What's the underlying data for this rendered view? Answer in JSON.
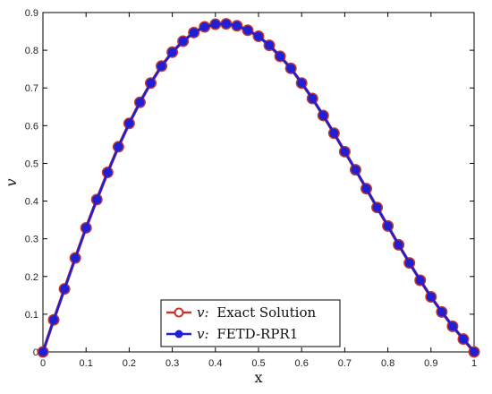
{
  "chart_data": {
    "type": "line",
    "xlabel": "x",
    "ylabel": "v",
    "xlim": [
      0,
      1
    ],
    "ylim": [
      0,
      0.9
    ],
    "xticks": [
      "0",
      "0.1",
      "0.2",
      "0.3",
      "0.4",
      "0.5",
      "0.6",
      "0.7",
      "0.8",
      "0.9",
      "1"
    ],
    "yticks": [
      "0",
      "0.1",
      "0.2",
      "0.3",
      "0.4",
      "0.5",
      "0.6",
      "0.7",
      "0.8",
      "0.9"
    ],
    "grid": false,
    "legend_position": "bottom-center",
    "x": [
      0,
      0.025,
      0.05,
      0.075,
      0.1,
      0.125,
      0.15,
      0.175,
      0.2,
      0.225,
      0.25,
      0.275,
      0.3,
      0.325,
      0.35,
      0.375,
      0.4,
      0.425,
      0.45,
      0.475,
      0.5,
      0.525,
      0.55,
      0.575,
      0.6,
      0.625,
      0.65,
      0.675,
      0.7,
      0.725,
      0.75,
      0.775,
      0.8,
      0.825,
      0.85,
      0.875,
      0.9,
      0.925,
      0.95,
      0.975,
      1
    ],
    "series": [
      {
        "name": "Exact Solution",
        "name_var": "v:",
        "color": "#c0392b",
        "values": [
          0,
          0.085,
          0.167,
          0.249,
          0.329,
          0.404,
          0.476,
          0.544,
          0.606,
          0.662,
          0.713,
          0.758,
          0.795,
          0.824,
          0.847,
          0.862,
          0.869,
          0.87,
          0.865,
          0.853,
          0.837,
          0.813,
          0.784,
          0.752,
          0.713,
          0.672,
          0.627,
          0.58,
          0.531,
          0.483,
          0.433,
          0.383,
          0.334,
          0.284,
          0.236,
          0.19,
          0.146,
          0.106,
          0.068,
          0.034,
          0
        ]
      },
      {
        "name": "FETD-RPR1",
        "name_var": "v:",
        "color": "#1f1fd6",
        "values": [
          0,
          0.085,
          0.167,
          0.249,
          0.329,
          0.404,
          0.476,
          0.544,
          0.606,
          0.662,
          0.713,
          0.758,
          0.795,
          0.824,
          0.847,
          0.862,
          0.869,
          0.87,
          0.865,
          0.853,
          0.837,
          0.813,
          0.784,
          0.752,
          0.713,
          0.672,
          0.627,
          0.58,
          0.531,
          0.483,
          0.433,
          0.383,
          0.334,
          0.284,
          0.236,
          0.19,
          0.146,
          0.106,
          0.068,
          0.034,
          0
        ]
      }
    ]
  }
}
